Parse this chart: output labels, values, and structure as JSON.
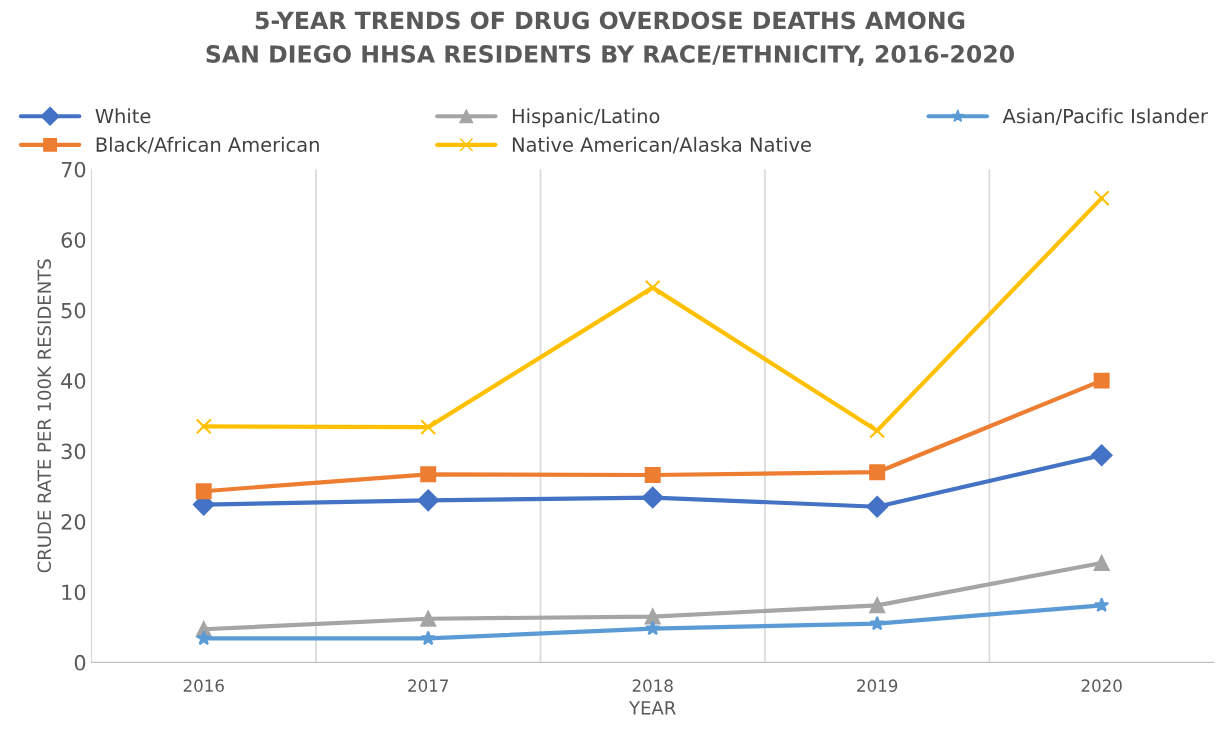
{
  "chart_data": {
    "type": "line",
    "title": "5-YEAR TRENDS OF DRUG OVERDOSE DEATHS AMONG\nSAN DIEGO HHSA RESIDENTS BY RACE/ETHNICITY, 2016-2020",
    "xlabel": "YEAR",
    "ylabel": "CRUDE RATE PER 100K RESIDENTS",
    "categories": [
      "2016",
      "2017",
      "2018",
      "2019",
      "2020"
    ],
    "series": [
      {
        "name": "White",
        "color": "#4472c4",
        "marker": "diamond",
        "values": [
          22.4,
          23.0,
          23.4,
          22.1,
          29.4
        ]
      },
      {
        "name": "Black/African American",
        "color": "#ed7d31",
        "marker": "square",
        "values": [
          24.3,
          26.7,
          26.6,
          27.0,
          40.0
        ]
      },
      {
        "name": "Hispanic/Latino",
        "color": "#a5a5a5",
        "marker": "triangle",
        "values": [
          4.7,
          6.2,
          6.5,
          8.1,
          14.1
        ]
      },
      {
        "name": "Native American/Alaska Native",
        "color": "#ffc000",
        "marker": "cross",
        "values": [
          33.5,
          33.4,
          53.2,
          32.9,
          65.9
        ]
      },
      {
        "name": "Asian/Pacific Islander",
        "color": "#5b9bd5",
        "marker": "star",
        "values": [
          3.4,
          3.4,
          4.8,
          5.5,
          8.1
        ]
      }
    ],
    "ylim": [
      0,
      70
    ],
    "yticks": [
      0,
      10,
      20,
      30,
      40,
      50,
      60,
      70
    ],
    "grid": "x",
    "legend": "top",
    "line_style": "solid"
  }
}
